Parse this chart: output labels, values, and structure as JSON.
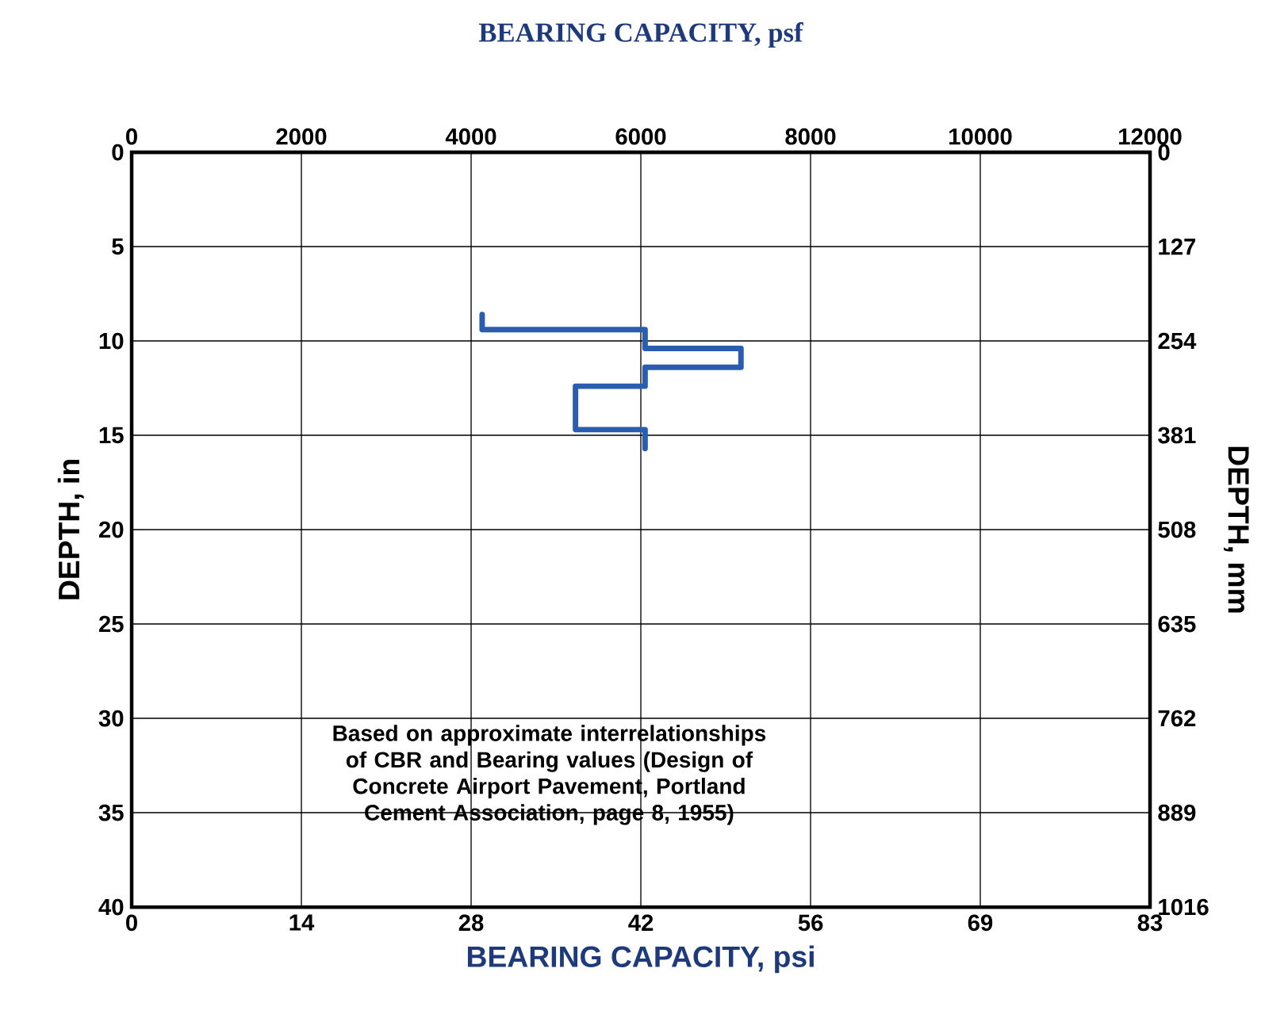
{
  "chart_data": {
    "type": "line",
    "x2label": "BEARING CAPACITY, psf",
    "xlabel": "BEARING CAPACITY, psi",
    "ylabel": "DEPTH, in",
    "y2label": "DEPTH, mm",
    "x2lim": [
      0,
      12000
    ],
    "x2ticks": [
      0,
      2000,
      4000,
      6000,
      8000,
      10000,
      12000
    ],
    "xlim": [
      0,
      83.33
    ],
    "xticks": [
      0,
      {
        "value": 13.89,
        "label": "14"
      },
      {
        "value": 27.78,
        "label": "28"
      },
      {
        "value": 41.67,
        "label": "42"
      },
      {
        "value": 55.56,
        "label": "56"
      },
      {
        "value": 69.44,
        "label": "69"
      },
      {
        "value": 83.33,
        "label": "83"
      }
    ],
    "ylim": [
      40,
      0
    ],
    "yticks": [
      0,
      5,
      10,
      15,
      20,
      25,
      30,
      35,
      40
    ],
    "y2lim": [
      1016,
      0
    ],
    "y2ticks": [
      0,
      127,
      254,
      381,
      508,
      635,
      762,
      889,
      1016
    ],
    "grid": true,
    "series": [
      {
        "axis": "x2",
        "color": "#2a5db0",
        "x": [
          4130,
          4130,
          6050,
          6050,
          7180,
          7180,
          6050,
          6050,
          5230,
          5230,
          6050,
          6050
        ],
        "values": [
          8.6,
          9.4,
          9.4,
          10.4,
          10.4,
          11.4,
          11.4,
          12.4,
          12.4,
          14.7,
          14.7,
          15.7
        ]
      }
    ],
    "annotations": [
      "Based on approximate interrelationships of CBR and Bearing values (Design of Concrete Airport Pavement, Portland Cement Association, page 8, 1955)"
    ]
  }
}
